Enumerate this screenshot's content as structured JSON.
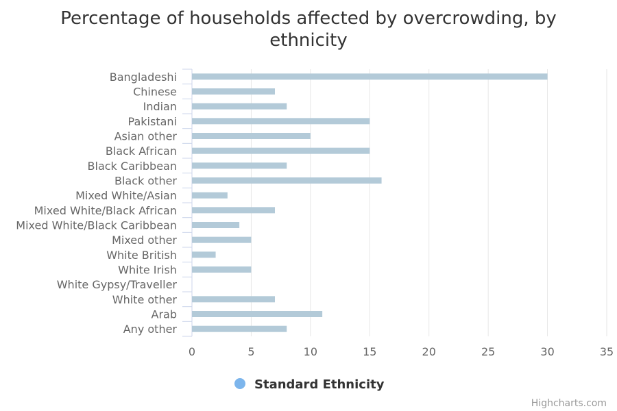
{
  "chart_data": {
    "type": "bar",
    "title_lines": [
      "Percentage of households affected by overcrowding, by",
      "ethnicity"
    ],
    "categories": [
      "Bangladeshi",
      "Chinese",
      "Indian",
      "Pakistani",
      "Asian other",
      "Black African",
      "Black Caribbean",
      "Black other",
      "Mixed White/Asian",
      "Mixed White/Black African",
      "Mixed White/Black Caribbean",
      "Mixed other",
      "White British",
      "White Irish",
      "White Gypsy/Traveller",
      "White other",
      "Arab",
      "Any other"
    ],
    "series": [
      {
        "name": "Standard Ethnicity",
        "values": [
          30,
          7,
          8,
          15,
          10,
          15,
          8,
          16,
          3,
          7,
          4,
          5,
          2,
          5,
          0,
          7,
          11,
          8
        ]
      }
    ],
    "xlim": [
      0,
      35
    ],
    "x_ticks": [
      0,
      5,
      10,
      15,
      20,
      25,
      30,
      35
    ],
    "grid": true,
    "legend_position": "bottom-center",
    "colors": {
      "bar": "#b3cad8",
      "legend_marker": "#7cb5ec",
      "grid": "#e6e6e6",
      "axis": "#ccd6eb"
    },
    "credits": "Highcharts.com"
  }
}
